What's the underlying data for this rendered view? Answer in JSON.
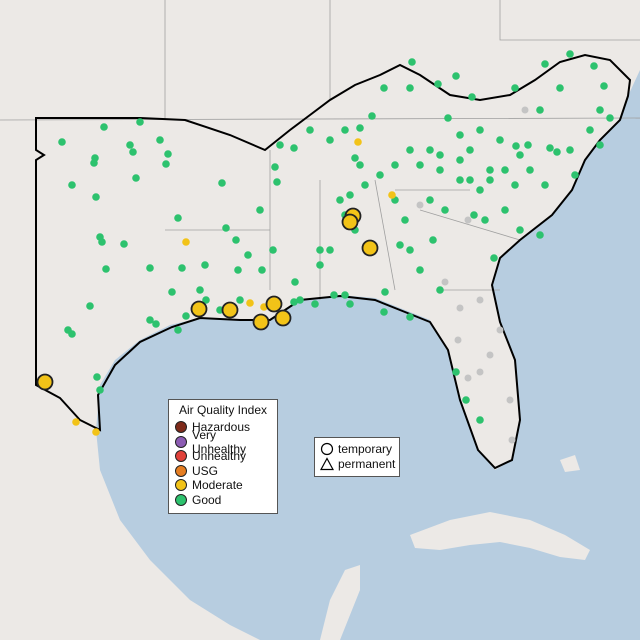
{
  "legend": {
    "title": "Air Quality Index",
    "items": [
      {
        "label": "Hazardous",
        "color": "#7e2a1a"
      },
      {
        "label": "Very Unhealthy",
        "color": "#8c5cb3"
      },
      {
        "label": "Unhealthy",
        "color": "#e0413a"
      },
      {
        "label": "USG",
        "color": "#e67e22"
      },
      {
        "label": "Moderate",
        "color": "#f2c318"
      },
      {
        "label": "Good",
        "color": "#2dc26e"
      }
    ]
  },
  "monitor_types": {
    "temporary": "temporary",
    "permanent": "permanent"
  },
  "colors": {
    "water": "#b7cde0",
    "land": "#ece9e6",
    "good": "#2dc26e",
    "moderate": "#f2c318",
    "no_data": "#c4c4c4",
    "outline": "#000000"
  }
}
